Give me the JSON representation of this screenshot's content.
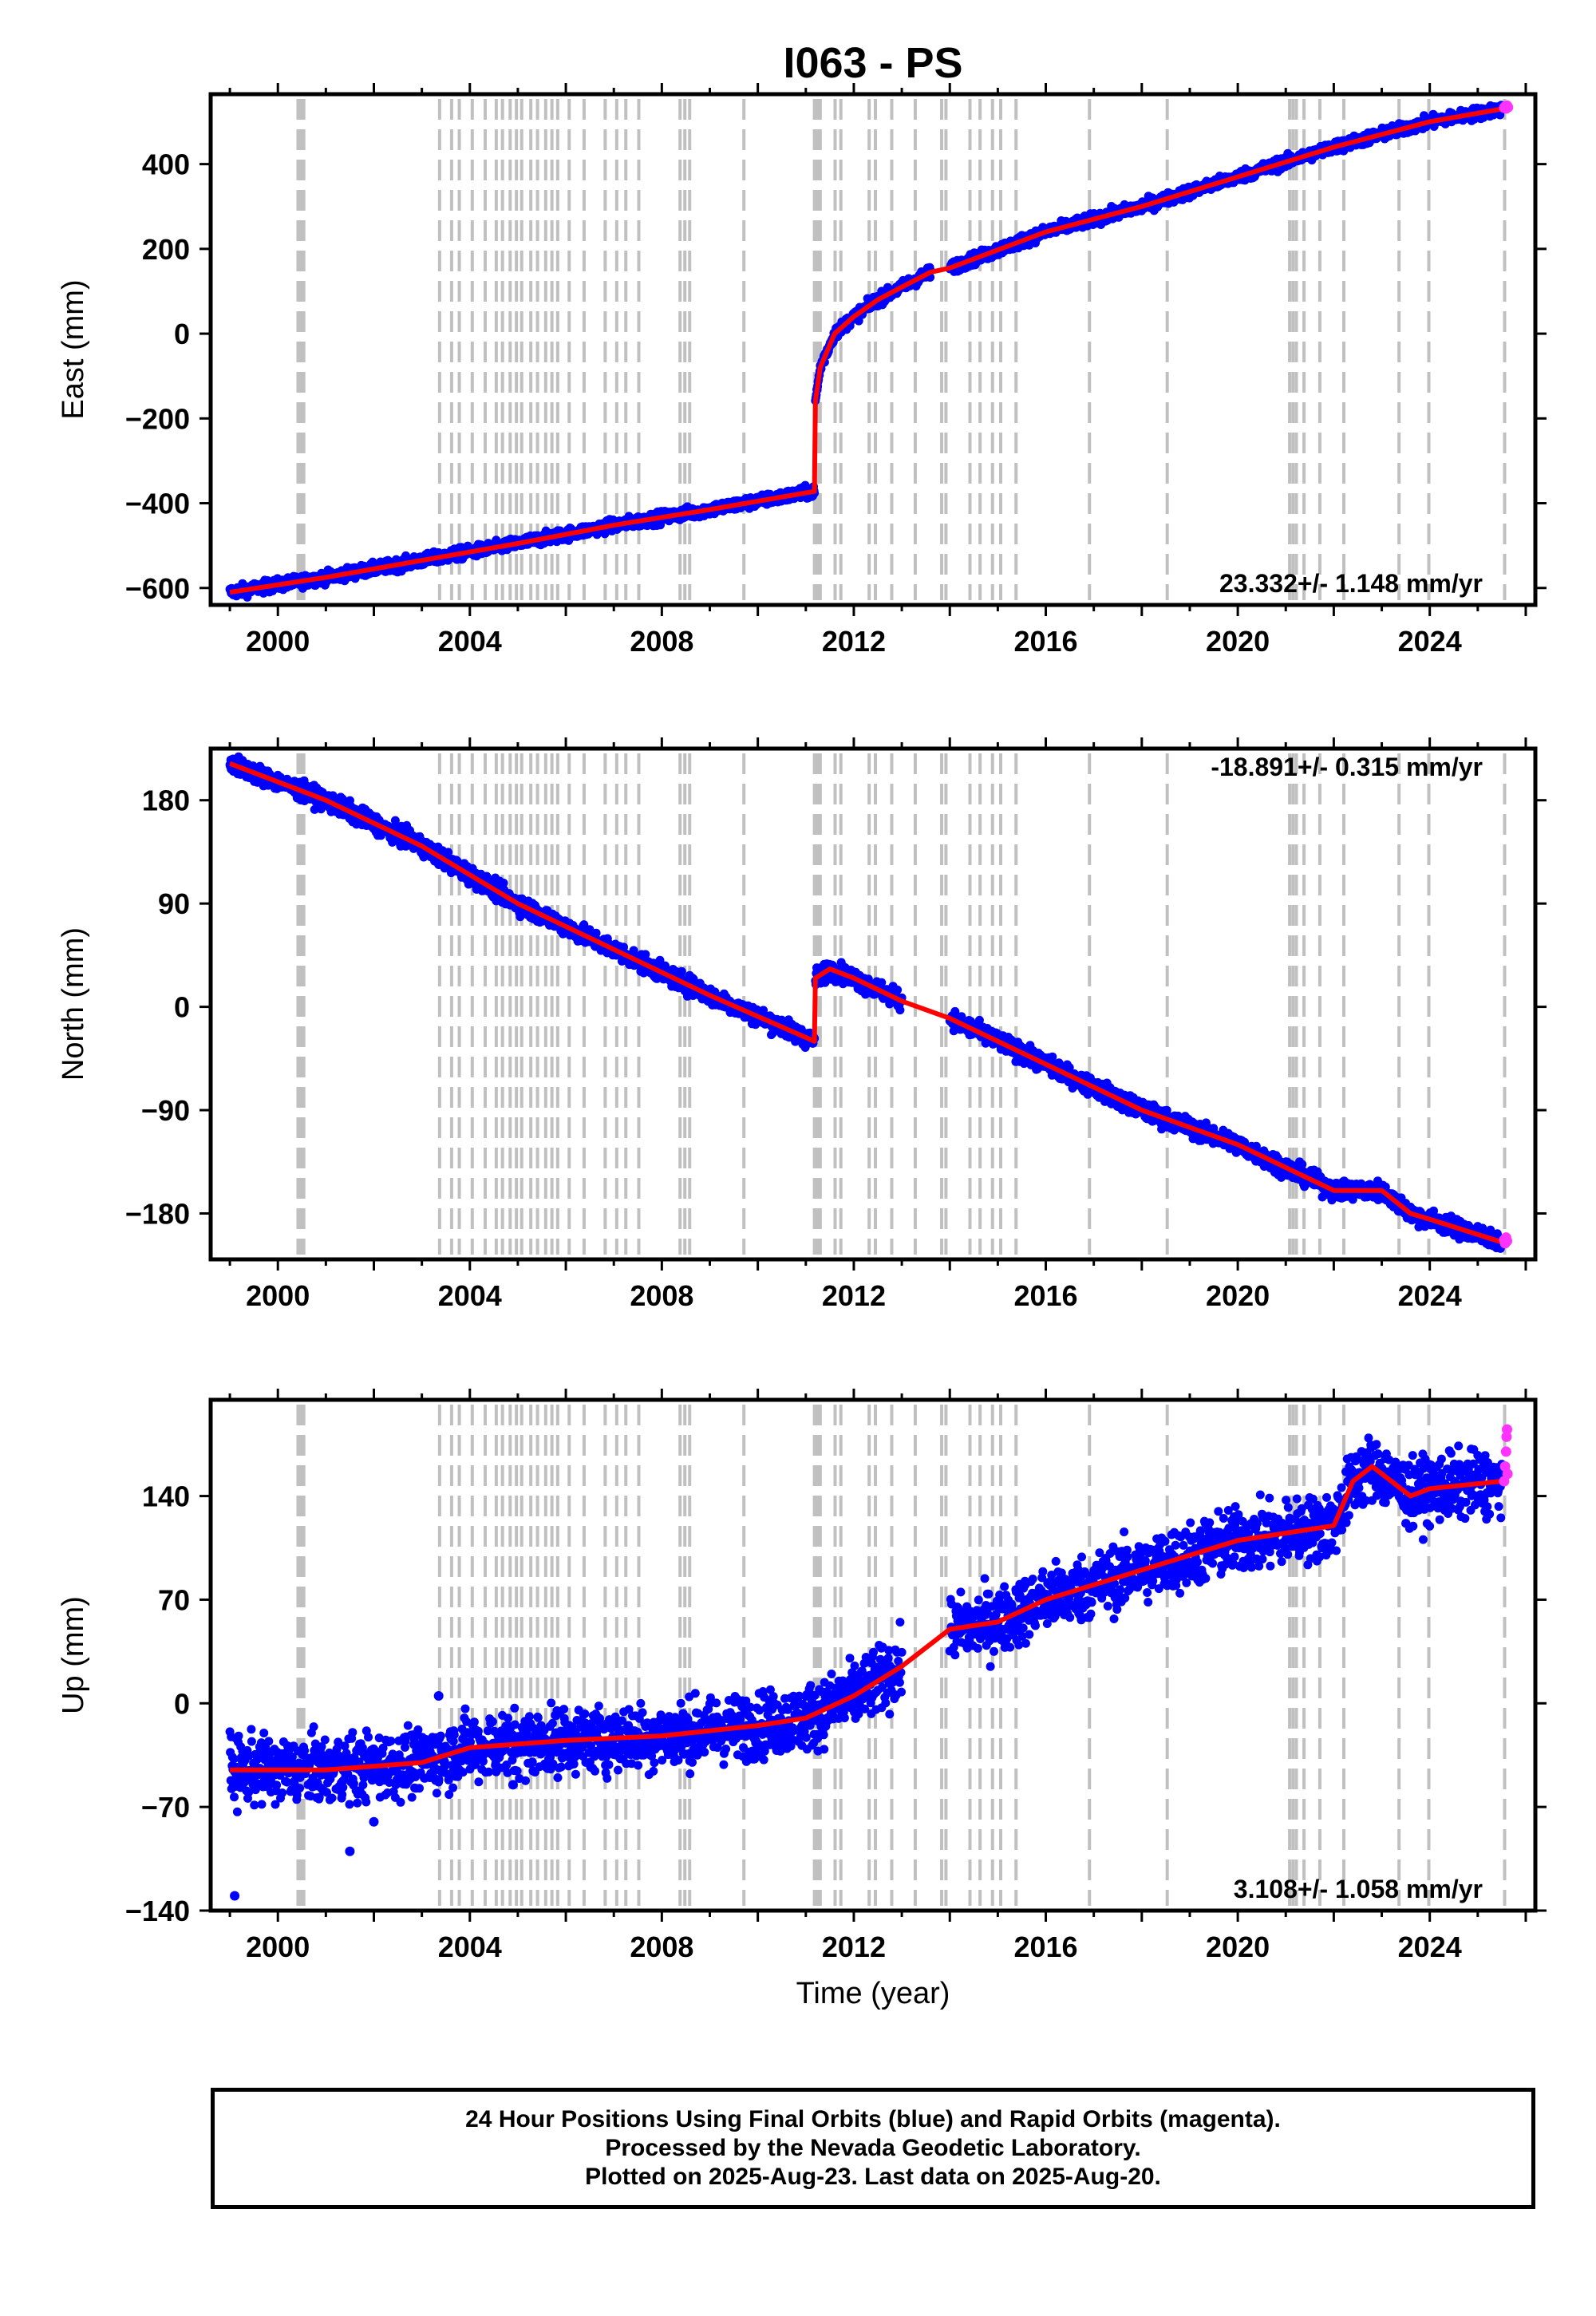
{
  "title": "I063 - PS",
  "caption": [
    "24 Hour Positions Using Final Orbits (blue) and Rapid Orbits (magenta).",
    "Processed by the Nevada Geodetic Laboratory.",
    "Plotted on 2025-Aug-23. Last data on 2025-Aug-20."
  ],
  "colors": {
    "final": "#0000ff",
    "rapid": "#ff33ff",
    "model": "#ff0000",
    "event_lines": "#c0c0c0"
  },
  "event_lines": [
    2000.42,
    2000.45,
    2000.48,
    2000.51,
    2000.54,
    2003.37,
    2003.62,
    2003.78,
    2004.05,
    2004.32,
    2004.55,
    2004.68,
    2004.84,
    2004.97,
    2005.08,
    2005.27,
    2005.41,
    2005.58,
    2005.71,
    2005.83,
    2006.07,
    2006.38,
    2006.82,
    2007.06,
    2007.25,
    2007.52,
    2008.38,
    2008.48,
    2008.58,
    2009.71,
    2011.18,
    2011.22,
    2011.26,
    2011.3,
    2011.61,
    2011.73,
    2012.32,
    2012.45,
    2012.79,
    2013.28,
    2013.83,
    2013.92,
    2014.42,
    2014.63,
    2014.89,
    2015.06,
    2015.38,
    2016.91,
    2018.53,
    2021.08,
    2021.15,
    2021.22,
    2021.38,
    2021.71,
    2022.21,
    2023.36,
    2023.98,
    2025.56
  ],
  "chart_data": [
    {
      "type": "scatter",
      "ylabel": "East (mm)",
      "xlabel": "",
      "xlim": [
        1998.6,
        2026.2
      ],
      "ylim": [
        -640,
        565
      ],
      "xticks": [
        2000,
        2004,
        2008,
        2012,
        2016,
        2020,
        2024
      ],
      "yticks": [
        -600,
        -400,
        -200,
        0,
        200,
        400
      ],
      "rate_label": "23.332+/- 1.148 mm/yr",
      "rate_position": "bottom-right",
      "final_segments": [
        {
          "x": [
            1999.0,
            2001.0,
            2003.0,
            2005.0,
            2007.0,
            2009.0,
            2011.18
          ],
          "y": [
            -610,
            -575,
            -535,
            -495,
            -452,
            -415,
            -372
          ]
        },
        {
          "x": [
            2011.2,
            2011.3,
            2011.6,
            2012.0,
            2012.5,
            2013.0,
            2013.6
          ],
          "y": [
            -160,
            -80,
            0,
            40,
            80,
            110,
            145
          ]
        },
        {
          "x": [
            2014.0,
            2016.0,
            2018.0,
            2020.0,
            2022.0,
            2024.0,
            2025.5
          ],
          "y": [
            155,
            240,
            300,
            370,
            440,
            500,
            530
          ]
        }
      ],
      "gaps": [
        [
          2013.6,
          2014.0
        ]
      ],
      "noise": 7,
      "model": {
        "x": [
          1999.0,
          2001.0,
          2003.0,
          2005.0,
          2007.0,
          2009.0,
          2011.18,
          2011.2,
          2011.3,
          2011.6,
          2012.0,
          2012.5,
          2013.0,
          2013.6,
          2014.0,
          2016.0,
          2018.0,
          2020.0,
          2022.0,
          2024.0,
          2025.5
        ],
        "y": [
          -610,
          -575,
          -535,
          -495,
          -452,
          -415,
          -372,
          -160,
          -80,
          0,
          40,
          80,
          110,
          145,
          155,
          240,
          300,
          370,
          440,
          500,
          530
        ]
      },
      "rapid": {
        "x": [
          2025.55,
          2025.57,
          2025.59,
          2025.61,
          2025.63
        ],
        "y": [
          533,
          536,
          531,
          538,
          534
        ]
      },
      "outliers": {
        "x": [],
        "y": []
      }
    },
    {
      "type": "scatter",
      "ylabel": "North (mm)",
      "xlabel": "",
      "xlim": [
        1998.6,
        2026.2
      ],
      "ylim": [
        -220,
        225
      ],
      "xticks": [
        2000,
        2004,
        2008,
        2012,
        2016,
        2020,
        2024
      ],
      "yticks": [
        -180,
        -90,
        0,
        90,
        180
      ],
      "rate_label": "-18.891+/- 0.315 mm/yr",
      "rate_position": "top-right",
      "final_segments": [
        {
          "x": [
            1999.0,
            2001.0,
            2003.0,
            2005.0,
            2007.0,
            2009.0,
            2011.18
          ],
          "y": [
            212,
            180,
            140,
            90,
            50,
            10,
            -30
          ]
        },
        {
          "x": [
            2011.2,
            2011.5,
            2012.0,
            2012.5,
            2013.0
          ],
          "y": [
            25,
            33,
            25,
            15,
            5
          ]
        },
        {
          "x": [
            2014.0,
            2016.0,
            2018.0,
            2020.0,
            2021.0,
            2022.0,
            2022.6,
            2023.0,
            2023.6,
            2024.0,
            2025.5
          ],
          "y": [
            -10,
            -50,
            -90,
            -120,
            -140,
            -160,
            -160,
            -160,
            -180,
            -185,
            -205
          ]
        }
      ],
      "gaps": [
        [
          2013.0,
          2014.0
        ]
      ],
      "noise": 4,
      "model": {
        "x": [
          1999.0,
          2001.0,
          2003.0,
          2005.0,
          2007.0,
          2009.0,
          2011.18,
          2011.2,
          2011.5,
          2012.0,
          2012.5,
          2013.0,
          2014.0,
          2016.0,
          2018.0,
          2020.0,
          2021.0,
          2022.0,
          2022.6,
          2023.0,
          2023.6,
          2024.0,
          2025.5
        ],
        "y": [
          212,
          180,
          140,
          90,
          50,
          10,
          -30,
          25,
          33,
          25,
          15,
          5,
          -10,
          -50,
          -90,
          -120,
          -140,
          -160,
          -160,
          -160,
          -180,
          -185,
          -205
        ]
      },
      "rapid": {
        "x": [
          2025.55,
          2025.57,
          2025.59,
          2025.61
        ],
        "y": [
          -203,
          -206,
          -201,
          -204
        ]
      },
      "outliers": {
        "x": [],
        "y": []
      }
    },
    {
      "type": "scatter",
      "ylabel": "Up (mm)",
      "xlabel": "Time (year)",
      "xlim": [
        1998.6,
        2026.2
      ],
      "ylim": [
        -140,
        205
      ],
      "xticks": [
        2000,
        2004,
        2008,
        2012,
        2016,
        2020,
        2024
      ],
      "yticks": [
        -140,
        -70,
        0,
        70,
        140
      ],
      "rate_label": "3.108+/- 1.058 mm/yr",
      "rate_position": "bottom-right",
      "final_segments": [
        {
          "x": [
            1999.0,
            2001.0,
            2003.0,
            2004.0,
            2006.0,
            2008.0,
            2010.0,
            2011.0,
            2012.0,
            2013.0
          ],
          "y": [
            -45,
            -45,
            -40,
            -30,
            -25,
            -22,
            -15,
            -10,
            5,
            25
          ]
        },
        {
          "x": [
            2014.0,
            2015.0,
            2016.0,
            2018.0,
            2020.0,
            2021.0,
            2022.0,
            2022.4,
            2022.8,
            2023.2,
            2023.6,
            2024.0,
            2025.5
          ],
          "y": [
            50,
            55,
            70,
            90,
            110,
            115,
            120,
            150,
            160,
            150,
            140,
            145,
            150
          ]
        }
      ],
      "gaps": [
        [
          2013.0,
          2014.0
        ]
      ],
      "noise": 11,
      "model": {
        "x": [
          1999.0,
          2001.0,
          2003.0,
          2004.0,
          2006.0,
          2008.0,
          2010.0,
          2011.0,
          2012.0,
          2013.0,
          2014.0,
          2015.0,
          2016.0,
          2018.0,
          2020.0,
          2021.0,
          2022.0,
          2022.4,
          2022.8,
          2023.2,
          2023.6,
          2024.0,
          2025.5
        ],
        "y": [
          -45,
          -45,
          -40,
          -30,
          -25,
          -22,
          -15,
          -10,
          5,
          25,
          50,
          55,
          70,
          90,
          110,
          115,
          120,
          150,
          160,
          150,
          140,
          145,
          150
        ]
      },
      "rapid": {
        "x": [
          2025.55,
          2025.57,
          2025.59,
          2025.6,
          2025.61,
          2025.62
        ],
        "y": [
          150,
          160,
          170,
          180,
          185,
          155
        ]
      },
      "outliers": {
        "x": [
          1999.1,
          2001.5,
          2003.35,
          2004.9,
          2002.0
        ],
        "y": [
          -130,
          -100,
          5,
          -55,
          -80
        ]
      }
    }
  ]
}
